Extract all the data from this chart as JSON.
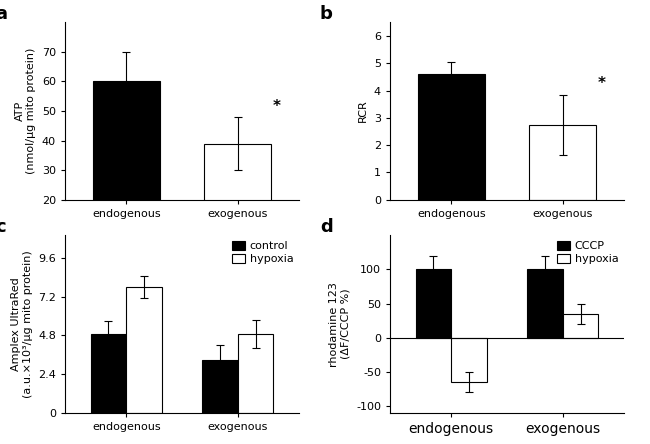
{
  "panel_a": {
    "categories": [
      "endogenous",
      "exogenous"
    ],
    "values": [
      60,
      39
    ],
    "errors": [
      10,
      9
    ],
    "colors": [
      "#000000",
      "#ffffff"
    ],
    "ylabel_line1": "ATP",
    "ylabel_line2": "(nmol/μg mito protein)",
    "ylim": [
      20,
      80
    ],
    "yticks": [
      20,
      30,
      40,
      50,
      60,
      70
    ],
    "label": "a"
  },
  "panel_b": {
    "categories": [
      "endogenous",
      "exogenous"
    ],
    "values": [
      4.6,
      2.75
    ],
    "errors": [
      0.45,
      1.1
    ],
    "colors": [
      "#000000",
      "#ffffff"
    ],
    "ylabel": "RCR",
    "ylim": [
      0,
      6.5
    ],
    "yticks": [
      0,
      1,
      2,
      3,
      4,
      5,
      6
    ],
    "label": "b"
  },
  "panel_c": {
    "group_labels": [
      "endogenous",
      "exogenous"
    ],
    "series_labels": [
      "control",
      "hypoxia"
    ],
    "values": [
      [
        4.9,
        7.8
      ],
      [
        3.3,
        4.9
      ]
    ],
    "errors": [
      [
        0.8,
        0.7
      ],
      [
        0.9,
        0.85
      ]
    ],
    "colors": [
      "#000000",
      "#ffffff"
    ],
    "ylabel_line1": "Amplex UltraRed",
    "ylabel_line2": "(a.u.×10³/μg mito protein)",
    "ylim": [
      0,
      11
    ],
    "yticks": [
      0,
      2.4,
      4.8,
      7.2,
      9.6
    ],
    "ytick_labels": [
      "0",
      "2.4",
      "4.8",
      "7.2",
      "9.6"
    ],
    "label": "c"
  },
  "panel_d": {
    "group_labels": [
      "endogenous",
      "exogenous"
    ],
    "series_labels": [
      "CCCP",
      "hypoxia"
    ],
    "values": [
      [
        100,
        -65
      ],
      [
        100,
        35
      ]
    ],
    "errors": [
      [
        20,
        15
      ],
      [
        20,
        15
      ]
    ],
    "colors": [
      "#000000",
      "#ffffff"
    ],
    "ylabel_line1": "rhodamine 123",
    "ylabel_line2": "(ΔF/CCCP %)",
    "ylim": [
      -110,
      150
    ],
    "yticks": [
      -100,
      -50,
      0,
      50,
      100
    ],
    "label": "d"
  }
}
